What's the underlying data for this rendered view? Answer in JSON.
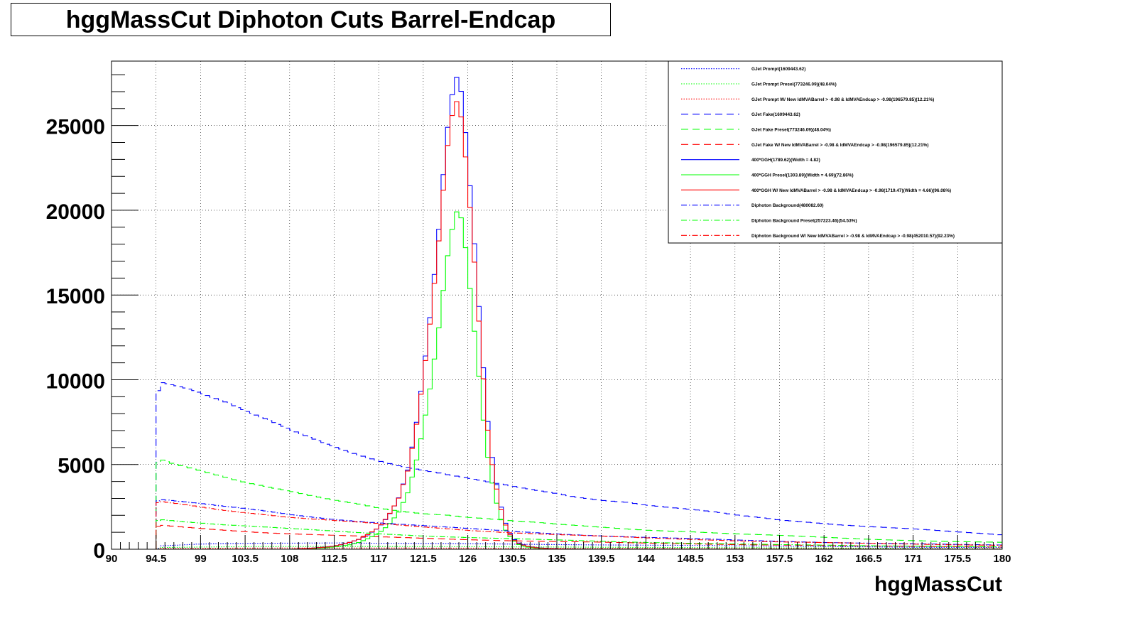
{
  "title": "hggMassCut Diphoton Cuts Barrel-Endcap",
  "chart_data": {
    "type": "line",
    "title": "hggMassCut Diphoton Cuts Barrel-Endcap",
    "xlabel": "hggMassCut",
    "ylabel": "",
    "xlim": [
      90,
      180
    ],
    "ylim": [
      0,
      28800
    ],
    "grid": true,
    "legend_position": "top-right",
    "x_ticks": [
      "90",
      "94.5",
      "99",
      "103.5",
      "108",
      "112.5",
      "117",
      "121.5",
      "126",
      "130.5",
      "135",
      "139.5",
      "144",
      "148.5",
      "153",
      "157.5",
      "162",
      "166.5",
      "171",
      "175.5",
      "180"
    ],
    "y_ticks": [
      "0",
      "5000",
      "10000",
      "15000",
      "20000",
      "25000"
    ],
    "series": [
      {
        "name": "GJet Prompt(1609443.62)",
        "color": "#0000ff",
        "style": "dotted",
        "x": [
          94.6,
          95,
          97,
          99,
          101,
          103.5,
          106,
          108,
          112.5,
          117,
          121.5,
          126,
          130.5,
          135,
          139.5,
          144,
          148.5,
          153,
          157.5,
          162,
          166.5,
          171,
          175.5,
          180
        ],
        "y": [
          0,
          200,
          250,
          300,
          320,
          340,
          350,
          360,
          380,
          360,
          340,
          320,
          300,
          280,
          260,
          240,
          220,
          200,
          180,
          160,
          140,
          120,
          110,
          100
        ]
      },
      {
        "name": "GJet Prompt Presel(773246.09)(48.04%)",
        "color": "#00ff00",
        "style": "dotted",
        "x": [
          94.6,
          95,
          99,
          103.5,
          108,
          112.5,
          117,
          121.5,
          126,
          130.5,
          135,
          139.5,
          144,
          153,
          162,
          171,
          180
        ],
        "y": [
          0,
          100,
          130,
          150,
          160,
          165,
          160,
          155,
          150,
          140,
          130,
          120,
          110,
          90,
          70,
          55,
          40
        ]
      },
      {
        "name": "GJet Prompt W/ New IdMVABarrel > -0.98 & IdMVAEndcap > -0.98(196579.85)(12.21%)",
        "color": "#ff0000",
        "style": "dotted",
        "x": [
          94.6,
          95,
          99,
          103.5,
          108,
          112.5,
          117,
          121.5,
          126,
          130.5,
          135,
          144,
          153,
          162,
          171,
          180
        ],
        "y": [
          0,
          50,
          60,
          65,
          70,
          72,
          70,
          68,
          65,
          60,
          55,
          45,
          38,
          30,
          24,
          18
        ]
      },
      {
        "name": "GJet Fake(1609443.62)",
        "color": "#0000ff",
        "style": "dash",
        "x": [
          94.5,
          94.6,
          95,
          96,
          97,
          98,
          99,
          100,
          101,
          102,
          103.5,
          105,
          106,
          108,
          110,
          112.5,
          115,
          117,
          119,
          121.5,
          124,
          126,
          128,
          130.5,
          133,
          135,
          137,
          139.5,
          142,
          144,
          146,
          148.5,
          151,
          153,
          155,
          157.5,
          160,
          162,
          164,
          166.5,
          169,
          171,
          173,
          175.5,
          178,
          180
        ],
        "y": [
          0,
          9200,
          9900,
          9700,
          9500,
          9300,
          9050,
          8800,
          8600,
          8350,
          8000,
          7700,
          7500,
          7100,
          6700,
          6200,
          5700,
          5300,
          4950,
          4600,
          4300,
          4100,
          3900,
          3700,
          3500,
          3350,
          3150,
          2950,
          2800,
          2600,
          2450,
          2300,
          2150,
          2000,
          1900,
          1750,
          1650,
          1550,
          1450,
          1350,
          1250,
          1180,
          1100,
          1000,
          920,
          850
        ]
      },
      {
        "name": "GJet Fake Presel(773246.09)(48.04%)",
        "color": "#00ff00",
        "style": "dash",
        "x": [
          94.5,
          94.6,
          95,
          96,
          97,
          98,
          99,
          100,
          101,
          102,
          103.5,
          105,
          106,
          108,
          110,
          112.5,
          115,
          117,
          119,
          121.5,
          124,
          126,
          128,
          130.5,
          133,
          135,
          139.5,
          144,
          148.5,
          153,
          157.5,
          162,
          166.5,
          171,
          175.5,
          180
        ],
        "y": [
          0,
          5100,
          5400,
          5200,
          5050,
          4900,
          4750,
          4550,
          4400,
          4200,
          3950,
          3750,
          3600,
          3350,
          3100,
          2850,
          2650,
          2450,
          2300,
          2150,
          2050,
          1900,
          1800,
          1650,
          1550,
          1450,
          1300,
          1150,
          1050,
          900,
          800,
          700,
          600,
          520,
          450,
          400
        ]
      },
      {
        "name": "GJet Fake W/ New IdMVABarrel > -0.98 & IdMVAEndcap > -0.98(196579.85)(12.21%)",
        "color": "#ff0000",
        "style": "dash",
        "x": [
          94.5,
          94.6,
          95,
          97,
          99,
          101,
          103.5,
          106,
          108,
          112.5,
          117,
          121.5,
          126,
          130.5,
          135,
          139.5,
          144,
          148.5,
          153,
          157.5,
          162,
          166.5,
          171,
          175.5,
          180
        ],
        "y": [
          0,
          1300,
          1380,
          1300,
          1220,
          1150,
          1060,
          980,
          930,
          820,
          720,
          640,
          570,
          510,
          460,
          410,
          360,
          320,
          280,
          250,
          220,
          190,
          170,
          150,
          130
        ]
      },
      {
        "name": "400*GGH(1789.62)(Width = 4.82)",
        "color": "#0000ff",
        "style": "solid",
        "x": [
          90,
          108,
          110,
          112,
          113,
          114,
          115,
          116,
          117,
          118,
          119,
          120,
          121,
          122,
          123,
          123.5,
          124,
          124.5,
          125,
          125.5,
          126,
          126.5,
          127,
          127.5,
          128,
          128.5,
          129,
          129.5,
          130,
          130.5,
          131,
          132,
          133,
          134,
          135,
          137,
          180
        ],
        "y": [
          0,
          0,
          50,
          150,
          250,
          400,
          600,
          900,
          1300,
          2000,
          3000,
          4800,
          8000,
          12500,
          18000,
          21500,
          24500,
          26500,
          27400,
          25800,
          22500,
          19000,
          15000,
          11000,
          7500,
          5200,
          3500,
          2100,
          1200,
          700,
          400,
          180,
          90,
          50,
          20,
          5,
          0
        ]
      },
      {
        "name": "400*GGH Presel(1303.89)(Width = 4.69)(72.86%)",
        "color": "#00ff00",
        "style": "solid",
        "x": [
          90,
          108,
          110,
          112,
          114,
          115,
          116,
          117,
          118,
          119,
          120,
          121,
          122,
          123,
          123.5,
          124,
          124.5,
          125,
          125.5,
          126,
          126.5,
          127,
          127.5,
          128,
          128.5,
          129,
          129.5,
          130,
          131,
          132,
          133,
          134,
          135,
          137,
          180
        ],
        "y": [
          0,
          0,
          30,
          100,
          250,
          400,
          650,
          950,
          1450,
          2200,
          3500,
          5800,
          9000,
          13000,
          15500,
          17800,
          19500,
          20500,
          19500,
          16800,
          14000,
          11000,
          8000,
          5500,
          3800,
          2500,
          1500,
          900,
          300,
          130,
          60,
          30,
          10,
          3,
          0
        ]
      },
      {
        "name": "400*GGH W/ New IdMVABarrel > -0.98 & IdMVAEndcap > -0.98(1719.47)(Width = 4.66)(96.08%)",
        "color": "#ff0000",
        "style": "solid",
        "x": [
          90,
          108,
          110,
          112,
          113,
          114,
          115,
          116,
          117,
          118,
          119,
          120,
          121,
          122,
          123,
          123.5,
          124,
          124.5,
          125,
          125.5,
          126,
          126.5,
          127,
          127.5,
          128,
          128.5,
          129,
          129.5,
          130,
          130.5,
          131,
          132,
          133,
          134,
          135,
          137,
          180
        ],
        "y": [
          0,
          0,
          48,
          140,
          240,
          380,
          580,
          880,
          1250,
          1950,
          2900,
          4650,
          7800,
          12200,
          17600,
          21000,
          24000,
          26000,
          26800,
          25200,
          22000,
          18600,
          14700,
          10800,
          7300,
          5000,
          3400,
          2050,
          1150,
          650,
          380,
          170,
          85,
          45,
          18,
          5,
          0
        ]
      },
      {
        "name": "Diphoton Background(480082.60)",
        "color": "#0000ff",
        "style": "dash-dot",
        "x": [
          94.5,
          94.6,
          95,
          97,
          99,
          101,
          103.5,
          106,
          108,
          112.5,
          117,
          121.5,
          126,
          130.5,
          135,
          139.5,
          144,
          148.5,
          153,
          157.5,
          162,
          166.5,
          171,
          175.5,
          180
        ],
        "y": [
          0,
          2850,
          2950,
          2800,
          2650,
          2500,
          2350,
          2200,
          2050,
          1800,
          1580,
          1380,
          1200,
          1050,
          920,
          800,
          700,
          620,
          540,
          470,
          410,
          360,
          320,
          280,
          250
        ]
      },
      {
        "name": "Diphoton Background Presel(257223.46)(54.53%)",
        "color": "#00ff00",
        "style": "dash-dot",
        "x": [
          94.5,
          94.6,
          95,
          97,
          99,
          101,
          103.5,
          106,
          108,
          112.5,
          117,
          121.5,
          126,
          130.5,
          135,
          139.5,
          144,
          148.5,
          153,
          157.5,
          162,
          166.5,
          171,
          175.5,
          180
        ],
        "y": [
          0,
          1700,
          1780,
          1680,
          1580,
          1480,
          1380,
          1280,
          1200,
          1050,
          920,
          800,
          700,
          610,
          540,
          470,
          410,
          360,
          310,
          270,
          240,
          210,
          185,
          160,
          140
        ]
      },
      {
        "name": "Diphoton Background W/ New IdMVABarrel > -0.98 & IdMVAEndcap > -0.98(452010.57)(92.23%)",
        "color": "#ff0000",
        "style": "dash-dot",
        "x": [
          94.5,
          94.6,
          95,
          97,
          99,
          101,
          103.5,
          106,
          108,
          112.5,
          117,
          121.5,
          126,
          130.5,
          135,
          139.5,
          144,
          148.5,
          153,
          157.5,
          162,
          166.5,
          171,
          175.5,
          180
        ],
        "y": [
          0,
          2650,
          2750,
          2620,
          2480,
          2340,
          2200,
          2060,
          1920,
          1690,
          1480,
          1300,
          1130,
          990,
          870,
          760,
          660,
          580,
          510,
          440,
          390,
          340,
          300,
          265,
          235
        ]
      }
    ]
  }
}
